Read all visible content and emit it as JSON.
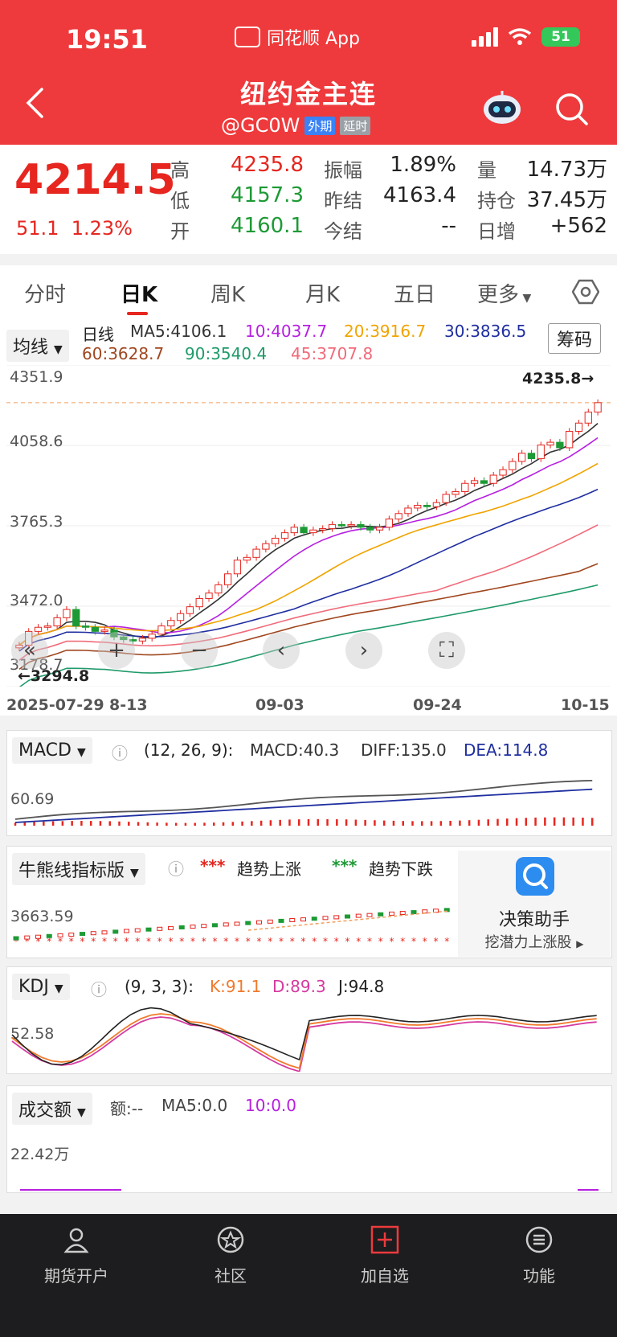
{
  "status_bar": {
    "time": "19:51",
    "app_name": "同花顺 App",
    "battery": "51"
  },
  "header": {
    "title": "纽约金主连",
    "code": "@GC0W",
    "tag1": "外期",
    "tag2": "延时",
    "back_icon": "chevron-left-icon",
    "assistant_icon": "robot-icon",
    "search_icon": "search-icon"
  },
  "quote": {
    "price": "4214.5",
    "change": "51.1",
    "change_pct": "1.23%",
    "high_label": "高",
    "high": "4235.8",
    "low_label": "低",
    "low": "4157.3",
    "open_label": "开",
    "open": "4160.1",
    "amp_label": "振幅",
    "amp": "1.89%",
    "prev_label": "昨结",
    "prev": "4163.4",
    "settle_label": "今结",
    "settle": "--",
    "vol_label": "量",
    "vol": "14.73万",
    "oi_label": "持仓",
    "oi": "37.45万",
    "daily_label": "日增",
    "daily": "+562"
  },
  "tabs": [
    "分时",
    "日K",
    "周K",
    "月K",
    "五日",
    "更多"
  ],
  "active_tab": "日K",
  "main_chart": {
    "selector": "均线",
    "period": "日线",
    "chip_button": "筹码",
    "ma": [
      {
        "label": "MA5:4106.1",
        "color": "#333333"
      },
      {
        "label": "10:4037.7",
        "color": "#b620e0"
      },
      {
        "label": "20:3916.7",
        "color": "#f0a400"
      },
      {
        "label": "30:3836.5",
        "color": "#1f2ea0"
      },
      {
        "label": "60:3628.7",
        "color": "#a0461e"
      },
      {
        "label": "90:3540.4",
        "color": "#1f9a6a"
      },
      {
        "label": "45:3707.8",
        "color": "#f06b7a"
      }
    ],
    "y_labels": [
      "4351.9",
      "4058.6",
      "3765.3",
      "3472.0",
      "3178.7"
    ],
    "max_marker": "4235.8→",
    "min_marker": "←3294.8",
    "x_labels": [
      "2025-07-29",
      "8-13",
      "09-03",
      "09-24",
      "10-15"
    ]
  },
  "chart_data": {
    "type": "candlestick",
    "ylim": [
      3178.7,
      4351.9
    ],
    "y_ticks": [
      4351.9,
      4058.6,
      3765.3,
      3472.0,
      3178.7
    ],
    "x_ticks": [
      "2025-07-29",
      "8-13",
      "09-03",
      "09-24",
      "10-15"
    ],
    "high": 4235.8,
    "low": 3294.8,
    "closes": [
      3330,
      3380,
      3395,
      3400,
      3430,
      3460,
      3400,
      3395,
      3380,
      3385,
      3360,
      3350,
      3345,
      3355,
      3370,
      3400,
      3420,
      3445,
      3470,
      3500,
      3520,
      3550,
      3590,
      3640,
      3650,
      3680,
      3700,
      3720,
      3740,
      3760,
      3740,
      3750,
      3755,
      3770,
      3765,
      3770,
      3760,
      3750,
      3760,
      3790,
      3810,
      3830,
      3840,
      3835,
      3850,
      3880,
      3890,
      3920,
      3930,
      3920,
      3950,
      3970,
      4000,
      4030,
      4010,
      4060,
      4070,
      4050,
      4110,
      4140,
      4180,
      4214.5
    ]
  },
  "macd": {
    "selector": "MACD",
    "params": "(12, 26, 9):",
    "macd": "MACD:40.3",
    "diff": "DIFF:135.0",
    "dea": "DEA:114.8",
    "y_label": "60.69"
  },
  "bull": {
    "selector": "牛熊线指标版",
    "up_label": "趋势上涨",
    "down_label": "趋势下跌",
    "y_label": "3663.59",
    "helper_title": "决策助手",
    "helper_sub": "挖潜力上涨股"
  },
  "kdj": {
    "selector": "KDJ",
    "params": "(9, 3, 3):",
    "k": "K:91.1",
    "d": "D:89.3",
    "j": "J:94.8",
    "y_label": "52.58"
  },
  "volume": {
    "selector": "成交额",
    "amount": "额:--",
    "ma5": "MA5:0.0",
    "ma10": "10:0.0",
    "y_label": "22.42万"
  },
  "bottom_nav": [
    {
      "label": "期货开户",
      "icon": "person-icon"
    },
    {
      "label": "社区",
      "icon": "community-icon"
    },
    {
      "label": "加自选",
      "icon": "add-icon"
    },
    {
      "label": "功能",
      "icon": "menu-icon"
    }
  ],
  "colors": {
    "brand_red": "#ee3a3c",
    "up": "#e6261f",
    "down": "#1d9a35"
  }
}
